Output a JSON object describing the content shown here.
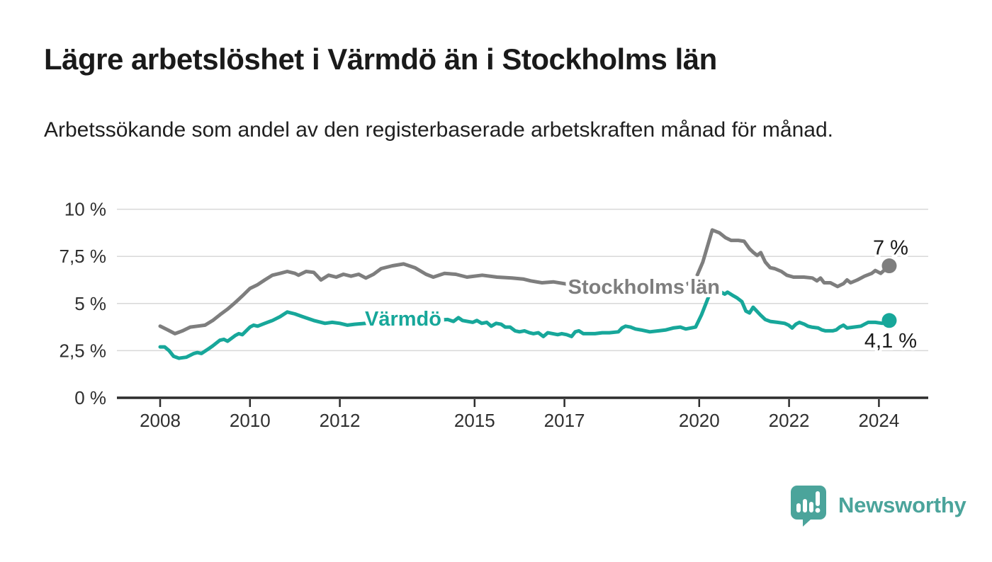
{
  "page": {
    "title": "Lägre arbetslöshet i Värmdö än i Stockholms län",
    "subtitle": "Arbetssökande som andel av den registerbaserade arbetskraften månad för månad.",
    "branding": {
      "name": "Newsworthy",
      "color": "#4ba49b",
      "icon": "bar-chart-speech-bubble"
    }
  },
  "chart_data": {
    "type": "line",
    "title": "Lägre arbetslöshet i Värmdö än i Stockholms län",
    "subtitle": "Arbetssökande som andel av den registerbaserade arbetskraften månad för månad.",
    "grid": "horizontal",
    "legend_position": "inline-labels",
    "x_axis": {
      "range": [
        2007.05,
        2025.1
      ],
      "ticks": [
        2008,
        2010,
        2012,
        2015,
        2017,
        2020,
        2022,
        2024
      ],
      "tick_labels": [
        "2008",
        "2010",
        "2012",
        "2015",
        "2017",
        "2020",
        "2022",
        "2024"
      ]
    },
    "y_axis": {
      "range": [
        0,
        10
      ],
      "unit": "%",
      "ticks": [
        0,
        2.5,
        5,
        7.5,
        10
      ],
      "tick_labels": [
        "0 %",
        "2,5 %",
        "5 %",
        "7,5 %",
        "10 %"
      ]
    },
    "series": [
      {
        "id": "stockholms-lan",
        "name": "Stockholms län",
        "color": "#7e7e7e",
        "end_value": 7.0,
        "end_label": "7 %",
        "end_label_side": "above",
        "label_pos": {
          "x": 2018.77,
          "y": 5.9
        },
        "points": [
          [
            2008.0,
            3.8
          ],
          [
            2008.17,
            3.6
          ],
          [
            2008.33,
            3.4
          ],
          [
            2008.5,
            3.55
          ],
          [
            2008.67,
            3.75
          ],
          [
            2008.83,
            3.8
          ],
          [
            2009.0,
            3.85
          ],
          [
            2009.17,
            4.1
          ],
          [
            2009.33,
            4.4
          ],
          [
            2009.5,
            4.7
          ],
          [
            2009.67,
            5.05
          ],
          [
            2009.83,
            5.4
          ],
          [
            2010.0,
            5.8
          ],
          [
            2010.17,
            6.0
          ],
          [
            2010.33,
            6.25
          ],
          [
            2010.5,
            6.5
          ],
          [
            2010.67,
            6.6
          ],
          [
            2010.83,
            6.7
          ],
          [
            2011.0,
            6.6
          ],
          [
            2011.08,
            6.5
          ],
          [
            2011.25,
            6.7
          ],
          [
            2011.42,
            6.65
          ],
          [
            2011.58,
            6.25
          ],
          [
            2011.75,
            6.5
          ],
          [
            2011.92,
            6.4
          ],
          [
            2012.08,
            6.55
          ],
          [
            2012.25,
            6.45
          ],
          [
            2012.42,
            6.55
          ],
          [
            2012.58,
            6.35
          ],
          [
            2012.75,
            6.55
          ],
          [
            2012.92,
            6.85
          ],
          [
            2013.17,
            7.0
          ],
          [
            2013.42,
            7.1
          ],
          [
            2013.67,
            6.9
          ],
          [
            2013.92,
            6.55
          ],
          [
            2014.08,
            6.4
          ],
          [
            2014.33,
            6.6
          ],
          [
            2014.58,
            6.55
          ],
          [
            2014.83,
            6.4
          ],
          [
            2015.17,
            6.5
          ],
          [
            2015.5,
            6.4
          ],
          [
            2015.83,
            6.35
          ],
          [
            2016.08,
            6.3
          ],
          [
            2016.25,
            6.2
          ],
          [
            2016.5,
            6.1
          ],
          [
            2016.75,
            6.15
          ],
          [
            2017.0,
            6.05
          ],
          [
            2017.33,
            5.95
          ],
          [
            2017.67,
            5.85
          ],
          [
            2018.0,
            5.75
          ],
          [
            2018.33,
            5.7
          ],
          [
            2018.67,
            5.75
          ],
          [
            2019.0,
            5.8
          ],
          [
            2019.33,
            5.85
          ],
          [
            2019.67,
            5.95
          ],
          [
            2019.92,
            6.3
          ],
          [
            2020.08,
            7.2
          ],
          [
            2020.29,
            8.9
          ],
          [
            2020.45,
            8.75
          ],
          [
            2020.58,
            8.5
          ],
          [
            2020.71,
            8.35
          ],
          [
            2020.87,
            8.35
          ],
          [
            2021.0,
            8.3
          ],
          [
            2021.12,
            7.9
          ],
          [
            2021.21,
            7.7
          ],
          [
            2021.29,
            7.55
          ],
          [
            2021.37,
            7.7
          ],
          [
            2021.47,
            7.2
          ],
          [
            2021.58,
            6.9
          ],
          [
            2021.68,
            6.85
          ],
          [
            2021.83,
            6.7
          ],
          [
            2021.95,
            6.5
          ],
          [
            2022.1,
            6.4
          ],
          [
            2022.33,
            6.4
          ],
          [
            2022.52,
            6.35
          ],
          [
            2022.62,
            6.2
          ],
          [
            2022.7,
            6.35
          ],
          [
            2022.78,
            6.1
          ],
          [
            2022.92,
            6.1
          ],
          [
            2023.08,
            5.9
          ],
          [
            2023.21,
            6.05
          ],
          [
            2023.29,
            6.25
          ],
          [
            2023.37,
            6.1
          ],
          [
            2023.52,
            6.25
          ],
          [
            2023.68,
            6.45
          ],
          [
            2023.84,
            6.6
          ],
          [
            2023.92,
            6.75
          ],
          [
            2024.04,
            6.6
          ],
          [
            2024.23,
            7.0
          ]
        ]
      },
      {
        "id": "varmdo",
        "name": "Värmdö",
        "color": "#17a79a",
        "end_value": 4.1,
        "end_label": "4,1 %",
        "end_label_side": "below",
        "label_pos": {
          "x": 2013.41,
          "y": 4.2
        },
        "points": [
          [
            2008.0,
            2.7
          ],
          [
            2008.1,
            2.7
          ],
          [
            2008.2,
            2.5
          ],
          [
            2008.3,
            2.2
          ],
          [
            2008.42,
            2.1
          ],
          [
            2008.58,
            2.15
          ],
          [
            2008.75,
            2.35
          ],
          [
            2008.83,
            2.4
          ],
          [
            2008.92,
            2.35
          ],
          [
            2009.08,
            2.6
          ],
          [
            2009.17,
            2.75
          ],
          [
            2009.33,
            3.05
          ],
          [
            2009.42,
            3.1
          ],
          [
            2009.5,
            3.0
          ],
          [
            2009.67,
            3.3
          ],
          [
            2009.75,
            3.4
          ],
          [
            2009.83,
            3.35
          ],
          [
            2010.0,
            3.75
          ],
          [
            2010.08,
            3.85
          ],
          [
            2010.17,
            3.8
          ],
          [
            2010.33,
            3.95
          ],
          [
            2010.5,
            4.1
          ],
          [
            2010.67,
            4.3
          ],
          [
            2010.83,
            4.55
          ],
          [
            2011.0,
            4.45
          ],
          [
            2011.17,
            4.3
          ],
          [
            2011.42,
            4.1
          ],
          [
            2011.67,
            3.95
          ],
          [
            2011.83,
            4.0
          ],
          [
            2012.0,
            3.95
          ],
          [
            2012.17,
            3.85
          ],
          [
            2012.33,
            3.9
          ],
          [
            2012.58,
            3.95
          ],
          [
            2012.83,
            4.0
          ],
          [
            2013.08,
            4.05
          ],
          [
            2013.33,
            4.1
          ],
          [
            2013.58,
            4.05
          ],
          [
            2013.83,
            4.0
          ],
          [
            2014.08,
            4.1
          ],
          [
            2014.4,
            4.15
          ],
          [
            2014.53,
            4.05
          ],
          [
            2014.64,
            4.25
          ],
          [
            2014.73,
            4.1
          ],
          [
            2014.96,
            4.0
          ],
          [
            2015.05,
            4.1
          ],
          [
            2015.16,
            3.95
          ],
          [
            2015.27,
            4.0
          ],
          [
            2015.37,
            3.8
          ],
          [
            2015.48,
            3.95
          ],
          [
            2015.59,
            3.9
          ],
          [
            2015.68,
            3.75
          ],
          [
            2015.79,
            3.75
          ],
          [
            2015.9,
            3.55
          ],
          [
            2016.0,
            3.5
          ],
          [
            2016.11,
            3.55
          ],
          [
            2016.22,
            3.45
          ],
          [
            2016.31,
            3.4
          ],
          [
            2016.42,
            3.45
          ],
          [
            2016.53,
            3.25
          ],
          [
            2016.63,
            3.45
          ],
          [
            2016.74,
            3.4
          ],
          [
            2016.85,
            3.35
          ],
          [
            2016.94,
            3.4
          ],
          [
            2017.05,
            3.35
          ],
          [
            2017.16,
            3.25
          ],
          [
            2017.24,
            3.5
          ],
          [
            2017.32,
            3.55
          ],
          [
            2017.42,
            3.4
          ],
          [
            2017.53,
            3.4
          ],
          [
            2017.68,
            3.4
          ],
          [
            2017.84,
            3.45
          ],
          [
            2018.0,
            3.45
          ],
          [
            2018.2,
            3.5
          ],
          [
            2018.28,
            3.7
          ],
          [
            2018.36,
            3.8
          ],
          [
            2018.47,
            3.75
          ],
          [
            2018.58,
            3.65
          ],
          [
            2018.7,
            3.6
          ],
          [
            2018.9,
            3.5
          ],
          [
            2019.1,
            3.55
          ],
          [
            2019.26,
            3.6
          ],
          [
            2019.42,
            3.7
          ],
          [
            2019.58,
            3.75
          ],
          [
            2019.7,
            3.65
          ],
          [
            2019.81,
            3.7
          ],
          [
            2019.92,
            3.75
          ],
          [
            2020.05,
            4.4
          ],
          [
            2020.15,
            5.0
          ],
          [
            2020.24,
            5.55
          ],
          [
            2020.33,
            5.6
          ],
          [
            2020.45,
            5.65
          ],
          [
            2020.57,
            5.5
          ],
          [
            2020.63,
            5.6
          ],
          [
            2020.73,
            5.45
          ],
          [
            2020.84,
            5.3
          ],
          [
            2020.95,
            5.1
          ],
          [
            2021.04,
            4.6
          ],
          [
            2021.12,
            4.5
          ],
          [
            2021.2,
            4.8
          ],
          [
            2021.28,
            4.6
          ],
          [
            2021.36,
            4.4
          ],
          [
            2021.47,
            4.15
          ],
          [
            2021.58,
            4.05
          ],
          [
            2021.74,
            4.0
          ],
          [
            2021.9,
            3.95
          ],
          [
            2021.99,
            3.85
          ],
          [
            2022.07,
            3.7
          ],
          [
            2022.15,
            3.9
          ],
          [
            2022.23,
            4.0
          ],
          [
            2022.34,
            3.9
          ],
          [
            2022.42,
            3.8
          ],
          [
            2022.5,
            3.75
          ],
          [
            2022.65,
            3.7
          ],
          [
            2022.73,
            3.6
          ],
          [
            2022.81,
            3.55
          ],
          [
            2022.97,
            3.55
          ],
          [
            2023.05,
            3.6
          ],
          [
            2023.13,
            3.75
          ],
          [
            2023.21,
            3.85
          ],
          [
            2023.29,
            3.7
          ],
          [
            2023.44,
            3.75
          ],
          [
            2023.6,
            3.8
          ],
          [
            2023.68,
            3.9
          ],
          [
            2023.76,
            4.0
          ],
          [
            2023.92,
            4.0
          ],
          [
            2024.08,
            3.95
          ],
          [
            2024.15,
            4.05
          ],
          [
            2024.23,
            4.1
          ]
        ]
      }
    ]
  }
}
